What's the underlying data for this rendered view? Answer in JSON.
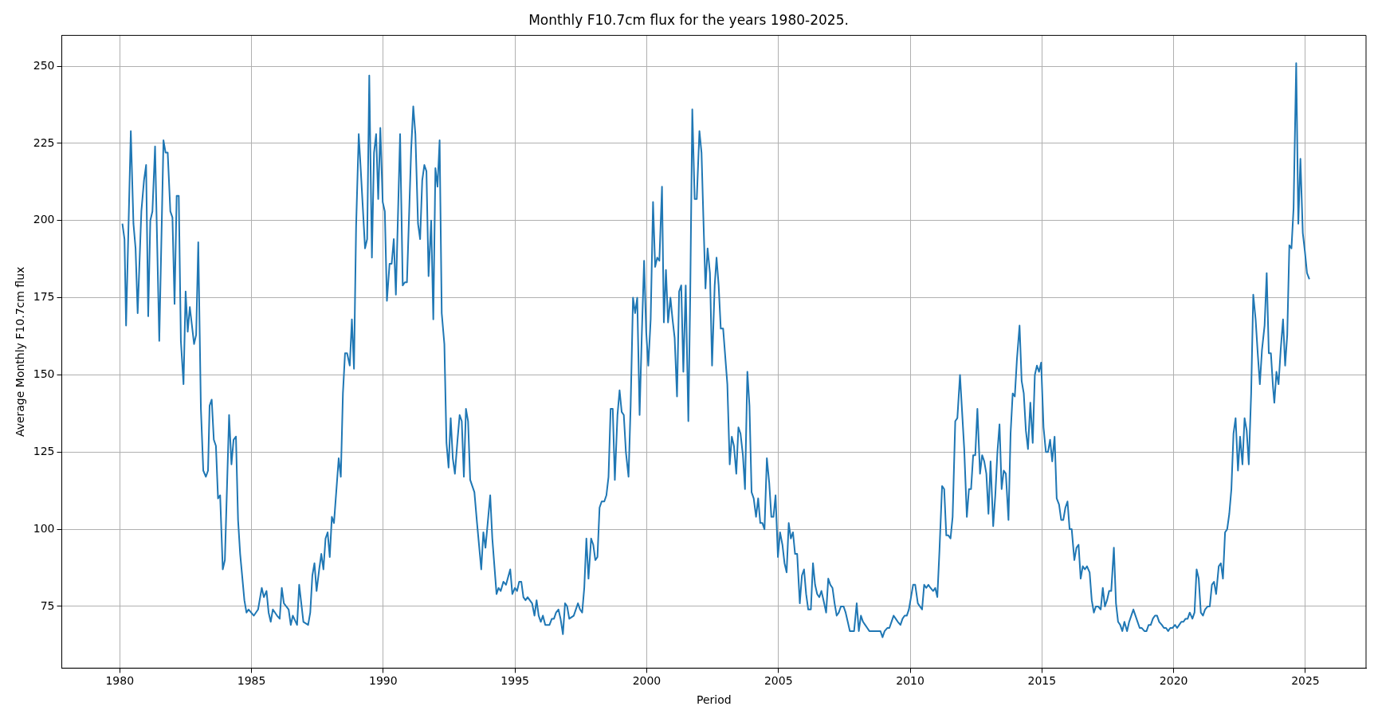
{
  "chart_data": {
    "type": "line",
    "title": "Monthly F10.7cm flux for the years 1980-2025.",
    "xlabel": "Period",
    "ylabel": "Average Monthly F10.7cm flux",
    "xlim": [
      1977.8,
      2027.3
    ],
    "ylim": [
      55,
      260
    ],
    "xticks": [
      1980,
      1985,
      1990,
      1995,
      2000,
      2005,
      2010,
      2015,
      2020,
      2025
    ],
    "yticks": [
      75,
      100,
      125,
      150,
      175,
      200,
      225,
      250
    ],
    "grid": true,
    "x": [
      1980.1,
      1980.18,
      1980.24,
      1980.42,
      1980.52,
      1980.6,
      1980.68,
      1980.82,
      1980.92,
      1981.0,
      1981.08,
      1981.16,
      1981.24,
      1981.34,
      1981.5,
      1981.66,
      1981.74,
      1981.82,
      1981.92,
      1982.0,
      1982.08,
      1982.16,
      1982.24,
      1982.32,
      1982.42,
      1982.5,
      1982.58,
      1982.66,
      1982.82,
      1982.9,
      1982.98,
      1983.08,
      1983.17,
      1983.27,
      1983.35,
      1983.41,
      1983.49,
      1983.57,
      1983.65,
      1983.73,
      1983.81,
      1983.91,
      1983.99,
      1984.15,
      1984.24,
      1984.32,
      1984.41,
      1984.49,
      1984.57,
      1984.73,
      1984.81,
      1984.89,
      1985.09,
      1985.25,
      1985.39,
      1985.47,
      1985.57,
      1985.65,
      1985.73,
      1985.81,
      1985.97,
      1986.07,
      1986.15,
      1986.23,
      1986.41,
      1986.49,
      1986.57,
      1986.73,
      1986.81,
      1986.97,
      1987.15,
      1987.23,
      1987.31,
      1987.39,
      1987.47,
      1987.57,
      1987.65,
      1987.73,
      1987.81,
      1987.89,
      1987.97,
      1988.05,
      1988.13,
      1988.31,
      1988.39,
      1988.47,
      1988.55,
      1988.63,
      1988.73,
      1988.81,
      1988.89,
      1988.97,
      1989.07,
      1989.15,
      1989.31,
      1989.39,
      1989.47,
      1989.57,
      1989.65,
      1989.73,
      1989.81,
      1989.89,
      1989.98,
      1990.06,
      1990.14,
      1990.24,
      1990.32,
      1990.4,
      1990.48,
      1990.64,
      1990.74,
      1990.82,
      1990.9,
      1991.06,
      1991.14,
      1991.22,
      1991.32,
      1991.4,
      1991.48,
      1991.56,
      1991.64,
      1991.72,
      1991.82,
      1991.9,
      1991.98,
      1992.06,
      1992.14,
      1992.22,
      1992.32,
      1992.4,
      1992.48,
      1992.56,
      1992.64,
      1992.72,
      1992.82,
      1992.9,
      1992.98,
      1993.06,
      1993.14,
      1993.22,
      1993.3,
      1993.46,
      1993.56,
      1993.72,
      1993.8,
      1993.88,
      1994.06,
      1994.14,
      1994.3,
      1994.38,
      1994.46,
      1994.56,
      1994.66,
      1994.82,
      1994.9,
      1995.0,
      1995.08,
      1995.16,
      1995.24,
      1995.32,
      1995.4,
      1995.48,
      1995.65,
      1995.74,
      1995.82,
      1995.9,
      1995.98,
      1996.06,
      1996.15,
      1996.31,
      1996.4,
      1996.48,
      1996.56,
      1996.65,
      1996.73,
      1996.82,
      1996.9,
      1996.98,
      1997.06,
      1997.23,
      1997.39,
      1997.47,
      1997.55,
      1997.63,
      1997.71,
      1997.79,
      1997.89,
      1997.97,
      1998.05,
      1998.13,
      1998.21,
      1998.29,
      1998.39,
      1998.47,
      1998.55,
      1998.63,
      1998.71,
      1998.79,
      1998.89,
      1998.97,
      1999.05,
      1999.13,
      1999.21,
      1999.31,
      1999.39,
      1999.48,
      1999.56,
      1999.64,
      1999.73,
      1999.81,
      1999.9,
      1999.98,
      2000.06,
      2000.15,
      2000.24,
      2000.32,
      2000.4,
      2000.48,
      2000.58,
      2000.65,
      2000.73,
      2000.81,
      2000.9,
      2000.98,
      2001.06,
      2001.15,
      2001.23,
      2001.31,
      2001.39,
      2001.48,
      2001.58,
      2001.65,
      2001.73,
      2001.82,
      2001.9,
      2002.0,
      2002.08,
      2002.15,
      2002.23,
      2002.31,
      2002.4,
      2002.48,
      2002.58,
      2002.65,
      2002.73,
      2002.81,
      2002.9,
      2003.06,
      2003.15,
      2003.23,
      2003.31,
      2003.4,
      2003.48,
      2003.56,
      2003.65,
      2003.73,
      2003.82,
      2003.9,
      2003.98,
      2004.06,
      2004.15,
      2004.23,
      2004.31,
      2004.39,
      2004.47,
      2004.56,
      2004.65,
      2004.73,
      2004.81,
      2004.89,
      2004.98,
      2005.06,
      2005.15,
      2005.23,
      2005.31,
      2005.39,
      2005.47,
      2005.55,
      2005.63,
      2005.71,
      2005.81,
      2005.89,
      2005.97,
      2006.05,
      2006.13,
      2006.23,
      2006.31,
      2006.39,
      2006.47,
      2006.55,
      2006.63,
      2006.71,
      2006.81,
      2006.89,
      2006.97,
      2007.05,
      2007.13,
      2007.21,
      2007.29,
      2007.37,
      2007.47,
      2007.55,
      2007.63,
      2007.71,
      2007.79,
      2007.87,
      2007.97,
      2008.05,
      2008.13,
      2008.21,
      2008.29,
      2008.37,
      2008.45,
      2008.63,
      2008.79,
      2008.87,
      2008.95,
      2009.03,
      2009.13,
      2009.21,
      2009.29,
      2009.37,
      2009.45,
      2009.53,
      2009.63,
      2009.71,
      2009.79,
      2009.87,
      2009.95,
      2010.03,
      2010.11,
      2010.19,
      2010.29,
      2010.45,
      2010.53,
      2010.61,
      2010.69,
      2010.77,
      2010.87,
      2010.95,
      2011.03,
      2011.11,
      2011.21,
      2011.29,
      2011.37,
      2011.45,
      2011.53,
      2011.61,
      2011.71,
      2011.79,
      2011.89,
      2011.97,
      2012.05,
      2012.15,
      2012.23,
      2012.31,
      2012.39,
      2012.47,
      2012.55,
      2012.65,
      2012.73,
      2012.81,
      2012.89,
      2012.97,
      2013.05,
      2013.15,
      2013.23,
      2013.31,
      2013.39,
      2013.47,
      2013.55,
      2013.63,
      2013.73,
      2013.81,
      2013.89,
      2013.97,
      2014.05,
      2014.15,
      2014.23,
      2014.31,
      2014.39,
      2014.47,
      2014.56,
      2014.65,
      2014.73,
      2014.81,
      2014.89,
      2014.97,
      2015.06,
      2015.15,
      2015.23,
      2015.31,
      2015.39,
      2015.48,
      2015.56,
      2015.65,
      2015.73,
      2015.81,
      2015.89,
      2015.97,
      2016.05,
      2016.13,
      2016.23,
      2016.31,
      2016.39,
      2016.47,
      2016.55,
      2016.63,
      2016.71,
      2016.81,
      2016.89,
      2016.97,
      2017.05,
      2017.13,
      2017.23,
      2017.31,
      2017.39,
      2017.47,
      2017.55,
      2017.63,
      2017.73,
      2017.81,
      2017.89,
      2017.97,
      2018.05,
      2018.13,
      2018.23,
      2018.31,
      2018.39,
      2018.47,
      2018.55,
      2018.63,
      2018.71,
      2018.79,
      2018.89,
      2018.97,
      2019.05,
      2019.13,
      2019.21,
      2019.29,
      2019.37,
      2019.45,
      2019.55,
      2019.63,
      2019.71,
      2019.79,
      2019.87,
      2019.95,
      2020.05,
      2020.13,
      2020.21,
      2020.29,
      2020.37,
      2020.45,
      2020.53,
      2020.61,
      2020.71,
      2020.79,
      2020.87,
      2020.95,
      2021.03,
      2021.11,
      2021.19,
      2021.29,
      2021.37,
      2021.45,
      2021.53,
      2021.61,
      2021.71,
      2021.79,
      2021.87,
      2021.95,
      2022.03,
      2022.11,
      2022.19,
      2022.27,
      2022.35,
      2022.44,
      2022.52,
      2022.61,
      2022.69,
      2022.77,
      2022.85,
      2022.94,
      2023.02,
      2023.11,
      2023.19,
      2023.27,
      2023.35,
      2023.45,
      2023.53,
      2023.61,
      2023.69,
      2023.77,
      2023.82,
      2023.9,
      2023.98,
      2024.06,
      2024.15,
      2024.23,
      2024.31,
      2024.39,
      2024.47,
      2024.55,
      2024.65,
      2024.73,
      2024.81,
      2024.9,
      2024.98,
      2025.06,
      2025.15
    ],
    "series": [
      {
        "color": "#1f77b4",
        "values": [
          199,
          194,
          166,
          229,
          199,
          191,
          170,
          203,
          213,
          218,
          169,
          200,
          203,
          224,
          161,
          226,
          222,
          222,
          203,
          201,
          173,
          208,
          208,
          161,
          147,
          177,
          164,
          172,
          160,
          163,
          193,
          139,
          119,
          117,
          119,
          140,
          142,
          129,
          127,
          110,
          111,
          87,
          90,
          137,
          121,
          129,
          130,
          103,
          92,
          77,
          73,
          74,
          72,
          74,
          81,
          78,
          80,
          73,
          70,
          74,
          72,
          71,
          81,
          76,
          74,
          69,
          72,
          69,
          82,
          70,
          69,
          73,
          85,
          89,
          80,
          87,
          92,
          87,
          97,
          99,
          91,
          104,
          102,
          123,
          117,
          144,
          157,
          157,
          153,
          168,
          152,
          198,
          228,
          216,
          191,
          194,
          247,
          188,
          222,
          228,
          207,
          230,
          206,
          203,
          174,
          186,
          186,
          194,
          176,
          228,
          179,
          180,
          180,
          223,
          237,
          228,
          199,
          194,
          213,
          218,
          216,
          182,
          200,
          168,
          217,
          211,
          226,
          170,
          160,
          128,
          120,
          136,
          123,
          118,
          129,
          137,
          135,
          117,
          139,
          135,
          116,
          112,
          102,
          87,
          99,
          94,
          111,
          97,
          79,
          81,
          80,
          83,
          82,
          87,
          79,
          81,
          80,
          83,
          83,
          78,
          77,
          78,
          76,
          72,
          77,
          72,
          70,
          72,
          69,
          69,
          71,
          71,
          73,
          74,
          71,
          66,
          76,
          75,
          71,
          72,
          76,
          74,
          73,
          81,
          97,
          84,
          97,
          95,
          90,
          91,
          107,
          109,
          109,
          111,
          117,
          139,
          139,
          116,
          137,
          145,
          138,
          137,
          125,
          117,
          140,
          175,
          170,
          175,
          137,
          162,
          187,
          164,
          153,
          168,
          206,
          185,
          188,
          187,
          211,
          167,
          184,
          167,
          175,
          168,
          162,
          143,
          177,
          179,
          151,
          179,
          135,
          175,
          236,
          207,
          207,
          229,
          222,
          201,
          178,
          191,
          183,
          153,
          179,
          188,
          179,
          165,
          165,
          147,
          121,
          130,
          127,
          118,
          133,
          131,
          124,
          113,
          151,
          140,
          112,
          110,
          104,
          110,
          102,
          102,
          100,
          123,
          115,
          104,
          104,
          111,
          91,
          99,
          95,
          89,
          86,
          102,
          97,
          99,
          92,
          92,
          76,
          85,
          87,
          79,
          74,
          74,
          89,
          82,
          79,
          78,
          80,
          77,
          73,
          84,
          82,
          81,
          76,
          72,
          73,
          75,
          75,
          73,
          70,
          67,
          67,
          67,
          76,
          67,
          72,
          70,
          69,
          68,
          67,
          67,
          67,
          67,
          65,
          67,
          68,
          68,
          70,
          72,
          71,
          70,
          69,
          71,
          72,
          72,
          74,
          78,
          82,
          82,
          76,
          74,
          82,
          81,
          82,
          81,
          80,
          81,
          78,
          93,
          114,
          113,
          98,
          98,
          97,
          104,
          135,
          136,
          150,
          138,
          126,
          104,
          113,
          113,
          124,
          124,
          139,
          118,
          124,
          122,
          118,
          105,
          122,
          101,
          111,
          125,
          134,
          113,
          119,
          118,
          103,
          131,
          144,
          143,
          155,
          166,
          148,
          144,
          132,
          126,
          141,
          128,
          150,
          153,
          151,
          154,
          133,
          125,
          125,
          129,
          122,
          130,
          110,
          108,
          103,
          103,
          107,
          109,
          100,
          100,
          90,
          94,
          95,
          84,
          88,
          87,
          88,
          86,
          77,
          73,
          75,
          75,
          74,
          81,
          75,
          77,
          80,
          80,
          94,
          76,
          70,
          69,
          67,
          70,
          67,
          70,
          72,
          74,
          72,
          70,
          68,
          68,
          67,
          67,
          69,
          69,
          71,
          72,
          72,
          70,
          69,
          68,
          68,
          67,
          68,
          68,
          69,
          68,
          69,
          70,
          70,
          71,
          71,
          73,
          71,
          73,
          87,
          84,
          73,
          72,
          74,
          75,
          75,
          82,
          83,
          79,
          88,
          89,
          84,
          99,
          100,
          105,
          113,
          131,
          136,
          119,
          130,
          121,
          136,
          132,
          121,
          144,
          176,
          168,
          157,
          147,
          158,
          166,
          183,
          157,
          157,
          146,
          141,
          151,
          147,
          158,
          168,
          153,
          163,
          192,
          191,
          204,
          251,
          199,
          220,
          196,
          190,
          183,
          181
        ]
      }
    ]
  }
}
